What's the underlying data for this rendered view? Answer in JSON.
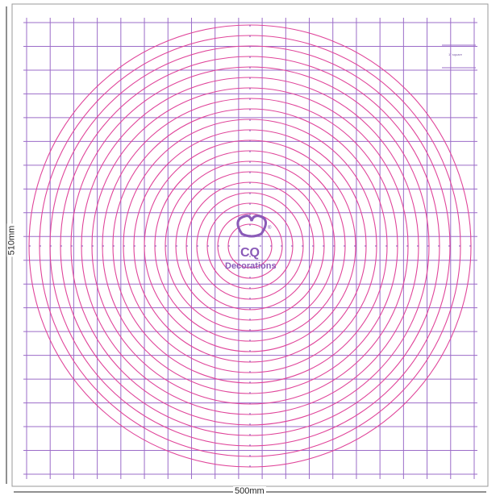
{
  "dimensions": {
    "width_label": "500mm",
    "height_label": "510mm"
  },
  "logo": {
    "letters": "CQ",
    "text": "Decorations",
    "mark": "®"
  },
  "legend": {
    "text": "1\" square"
  },
  "colors": {
    "grid": "#9b6cc8",
    "circles": "#e0459a",
    "logo": "#8a5ab8",
    "border": "#999999"
  }
}
